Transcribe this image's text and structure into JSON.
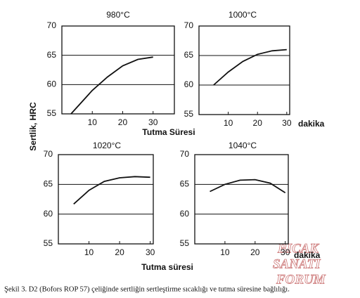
{
  "y_label": "Sertlik, HRC",
  "caption": "Şekil 3. D2 (Bofors ROP 57) çeliğinde sertliğin sertleştirme sıcaklığı ve tutma süresine bağlılığı.",
  "watermark": [
    "BICAK",
    "SANATI",
    "FORUM"
  ],
  "chart_data": [
    {
      "type": "line",
      "title": "980°C",
      "x_label": "Tutma Süresi",
      "color": "#111111",
      "grid": true,
      "x": [
        3,
        10,
        15,
        20,
        25,
        30
      ],
      "values": [
        55,
        59,
        61.3,
        63.2,
        64.3,
        64.7
      ],
      "xlim": [
        0,
        37
      ],
      "ylim": [
        55,
        70
      ],
      "xticks": [
        10,
        20,
        30
      ],
      "yticks": [
        55,
        60,
        65,
        70
      ]
    },
    {
      "type": "line",
      "title": "1000°C",
      "x_label": "dakika",
      "color": "#111111",
      "grid": true,
      "x": [
        5,
        10,
        15,
        20,
        25,
        30
      ],
      "values": [
        60,
        62.2,
        64,
        65.2,
        65.8,
        66
      ],
      "xlim": [
        0,
        31
      ],
      "ylim": [
        55,
        70
      ],
      "xticks": [
        10,
        20,
        30
      ],
      "yticks": [
        55,
        60,
        65,
        70
      ]
    },
    {
      "type": "line",
      "title": "1020°C",
      "x_label": "Tutma süresi",
      "color": "#111111",
      "grid": true,
      "x": [
        5,
        10,
        15,
        20,
        25,
        30
      ],
      "values": [
        61.7,
        64,
        65.5,
        66.1,
        66.3,
        66.2
      ],
      "xlim": [
        0,
        31
      ],
      "ylim": [
        55,
        70
      ],
      "xticks": [
        10,
        20,
        30
      ],
      "yticks": [
        55,
        60,
        65,
        70
      ]
    },
    {
      "type": "line",
      "title": "1040°C",
      "x_label": "dakika",
      "color": "#111111",
      "grid": true,
      "x": [
        5,
        10,
        15,
        20,
        25,
        30
      ],
      "values": [
        63.8,
        65,
        65.7,
        65.8,
        65.2,
        63.6
      ],
      "xlim": [
        0,
        31
      ],
      "ylim": [
        55,
        70
      ],
      "xticks": [
        10,
        20,
        30
      ],
      "yticks": [
        55,
        60,
        65,
        70
      ]
    }
  ]
}
